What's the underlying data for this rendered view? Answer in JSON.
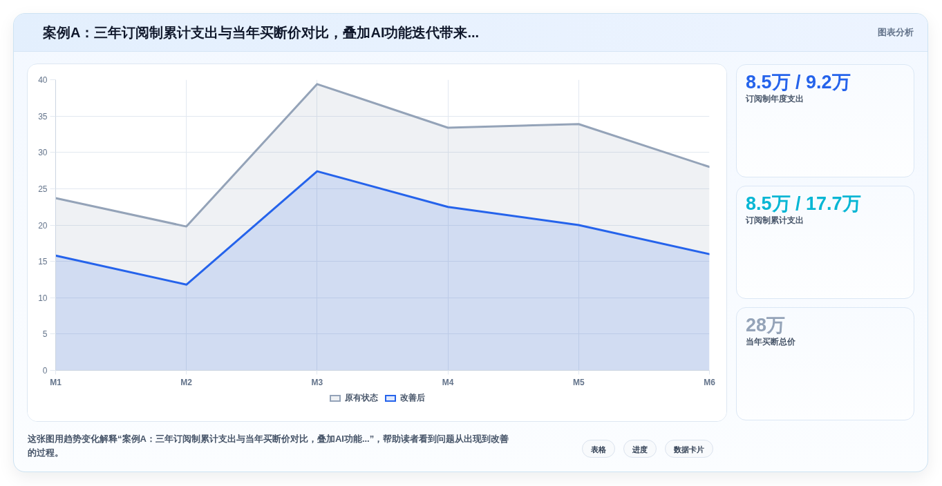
{
  "chart_data": [
    {
      "type": "area",
      "title": "案例A：三年订阅制累计支出与当年买断价对比，叠加AI功能迭代带来...",
      "categories": [
        "M1",
        "M2",
        "M3",
        "M4",
        "M5",
        "M6"
      ],
      "series": [
        {
          "name": "原有状态",
          "color": "#94a3b8",
          "values": [
            23.7,
            19.8,
            39.4,
            33.4,
            33.9,
            28
          ]
        },
        {
          "name": "改善后",
          "color": "#2563eb",
          "values": [
            15.8,
            11.8,
            27.4,
            22.5,
            20,
            16
          ]
        }
      ],
      "ylim": [
        0,
        40
      ],
      "yticks": [
        0,
        5,
        10,
        15,
        20,
        25,
        30,
        35,
        40
      ],
      "grid": true,
      "legend": "bottom",
      "annotations": [
        "图表分析",
        "这张图用趋势变化解释“案例A：三年订阅制累计支出与当年买断价对比，叠加AI功能...”，帮助读者看到问题从出现到改善的过程。",
        "表格",
        "进度",
        "数据卡片"
      ]
    },
    {
      "type": "other",
      "annotations": [
        "8.5万 / 9.2万",
        "订阅制年度支出",
        "8.5万 / 17.7万",
        "订阅制累计支出",
        "28万",
        "当年买断总价"
      ]
    }
  ]
}
